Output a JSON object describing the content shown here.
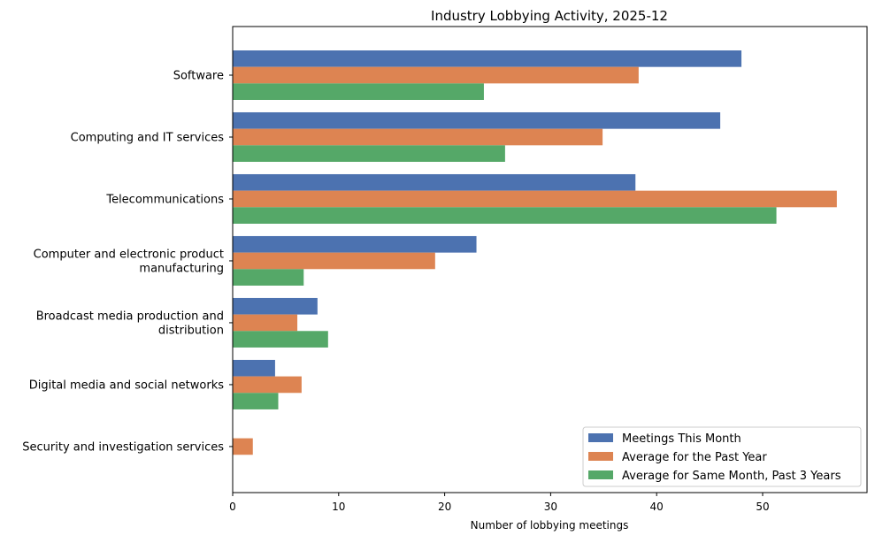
{
  "chart_data": {
    "type": "bar",
    "orientation": "horizontal",
    "title": "Industry Lobbying Activity, 2025-12",
    "xlabel": "Number of lobbying meetings",
    "ylabel": "",
    "xlim": [
      0,
      59.85
    ],
    "xticks": [
      0,
      10,
      20,
      30,
      40,
      50
    ],
    "grid": false,
    "legend_placement": "lower-right",
    "categories": [
      [
        "Software"
      ],
      [
        "Computing and IT services"
      ],
      [
        "Telecommunications"
      ],
      [
        "Computer and electronic product",
        "manufacturing"
      ],
      [
        "Broadcast media production and",
        "distribution"
      ],
      [
        "Digital media and social networks"
      ],
      [
        "Security and investigation services"
      ]
    ],
    "series": [
      {
        "name": "Meetings This Month",
        "color": "#4c72b0",
        "values": [
          48,
          46,
          38,
          23,
          8,
          4,
          0
        ]
      },
      {
        "name": "Average for the Past Year",
        "color": "#dd8452",
        "values": [
          38.3,
          34.9,
          57,
          19.1,
          6.1,
          6.5,
          1.9
        ]
      },
      {
        "name": "Average for Same Month, Past 3 Years",
        "color": "#55a868",
        "values": [
          23.7,
          25.7,
          51.3,
          6.7,
          9.0,
          4.3,
          0
        ]
      }
    ]
  }
}
